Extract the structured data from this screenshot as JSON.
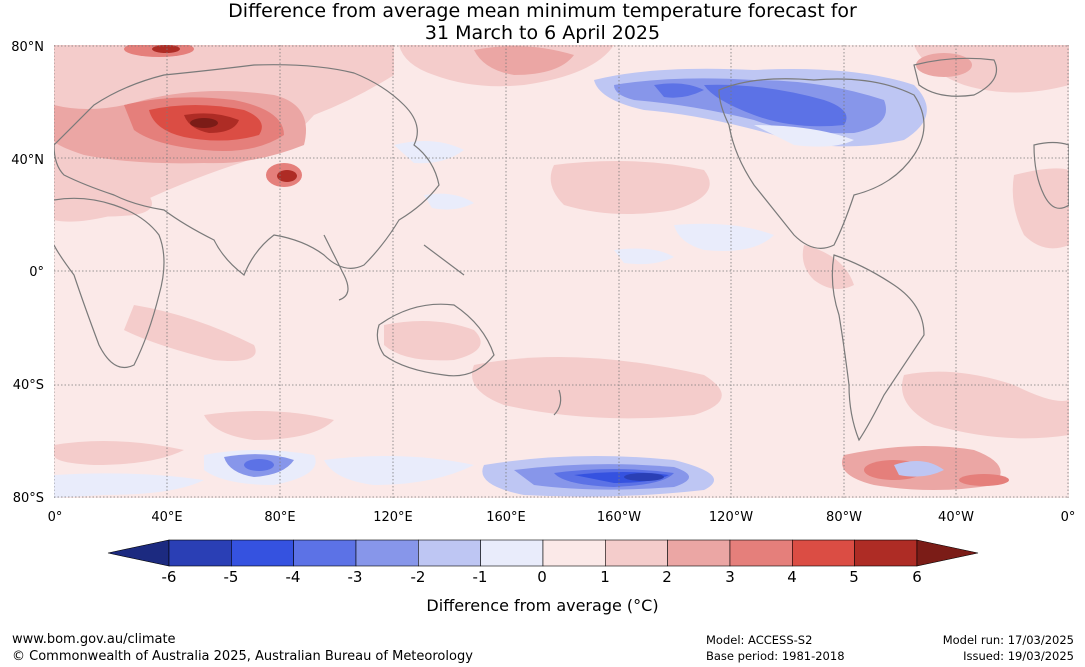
{
  "title": {
    "line1": "Difference from average mean minimum temperature forecast for",
    "line2": "31 March to 6 April 2025"
  },
  "map": {
    "lat_labels": [
      "80°N",
      "40°N",
      "0°",
      "40°S",
      "80°S"
    ],
    "lon_labels": [
      "0°",
      "40°E",
      "80°E",
      "120°E",
      "160°E",
      "160°W",
      "120°W",
      "80°W",
      "40°W",
      "0°"
    ],
    "background_color": "#fbe9e8",
    "coast_color": "#7a7a7a"
  },
  "colorbar": {
    "ticks": [
      "-6",
      "-5",
      "-4",
      "-3",
      "-2",
      "-1",
      "0",
      "1",
      "2",
      "3",
      "4",
      "5",
      "6"
    ],
    "colors": [
      "#1c2a80",
      "#2a3fb5",
      "#3552e0",
      "#5c72e6",
      "#8796ea",
      "#bec6f3",
      "#e9ecfb",
      "#fbe9e8",
      "#f4cccb",
      "#eba6a4",
      "#e57f7b",
      "#db4d44",
      "#ae2c25",
      "#7b1c17"
    ],
    "label": "Difference from average (°C)"
  },
  "footer": {
    "url": "www.bom.gov.au/climate",
    "copyright": "© Commonwealth of Australia 2025, Australian Bureau of Meteorology",
    "model": "Model: ACCESS-S2",
    "base_period": "Base period: 1981-2018",
    "model_run": "Model run: 17/03/2025",
    "issued": "Issued: 19/03/2025"
  }
}
